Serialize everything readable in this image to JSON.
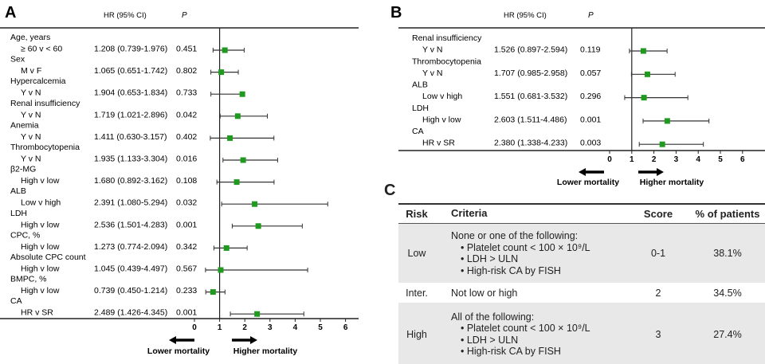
{
  "chart_data": [
    {
      "type": "forest",
      "panel": "A",
      "col_hr": "HR (95% CI)",
      "col_p": "P",
      "xlim": [
        0,
        6
      ],
      "ticks": [
        "0",
        "1",
        "2",
        "3",
        "4",
        "5",
        "6"
      ],
      "reference": 1,
      "lower_label": "Lower mortality",
      "higher_label": "Higher mortality",
      "rows": [
        {
          "group": "Age, years",
          "compare": "≥ 60 v < 60",
          "hr_text": "1.208 (0.739-1.976)",
          "p": "0.451",
          "hr": 1.208,
          "lo": 0.739,
          "hi": 1.976
        },
        {
          "group": "Sex",
          "compare": "M v F",
          "hr_text": "1.065 (0.651-1.742)",
          "p": "0.802",
          "hr": 1.065,
          "lo": 0.651,
          "hi": 1.742
        },
        {
          "group": "Hypercalcemia",
          "compare": "Y v N",
          "hr_text": "1.904 (0.653-1.834)",
          "p": "0.733",
          "hr": 1.904,
          "lo": 0.653,
          "hi": 1.834
        },
        {
          "group": "Renal insufficiency",
          "compare": "Y v N",
          "hr_text": "1.719 (1.021-2.896)",
          "p": "0.042",
          "hr": 1.719,
          "lo": 1.021,
          "hi": 2.896
        },
        {
          "group": "Anemia",
          "compare": "Y v N",
          "hr_text": "1.411 (0.630-3.157)",
          "p": "0.402",
          "hr": 1.411,
          "lo": 0.63,
          "hi": 3.157
        },
        {
          "group": "Thrombocytopenia",
          "compare": "Y v N",
          "hr_text": "1.935 (1.133-3.304)",
          "p": "0.016",
          "hr": 1.935,
          "lo": 1.133,
          "hi": 3.304
        },
        {
          "group": "β2-MG",
          "compare": "High v low",
          "hr_text": "1.680 (0.892-3.162)",
          "p": "0.108",
          "hr": 1.68,
          "lo": 0.892,
          "hi": 3.162
        },
        {
          "group": "ALB",
          "compare": "Low v high",
          "hr_text": "2.391 (1.080-5.294)",
          "p": "0.032",
          "hr": 2.391,
          "lo": 1.08,
          "hi": 5.294
        },
        {
          "group": "LDH",
          "compare": "High v low",
          "hr_text": "2.536 (1.501-4.283)",
          "p": "0.001",
          "hr": 2.536,
          "lo": 1.501,
          "hi": 4.283
        },
        {
          "group": "CPC, %",
          "compare": "High v low",
          "hr_text": "1.273 (0.774-2.094)",
          "p": "0.342",
          "hr": 1.273,
          "lo": 0.774,
          "hi": 2.094
        },
        {
          "group": "Absolute CPC count",
          "compare": "High v low",
          "hr_text": "1.045 (0.439-4.497)",
          "p": "0.567",
          "hr": 1.045,
          "lo": 0.439,
          "hi": 4.497
        },
        {
          "group": "BMPC, %",
          "compare": "High v low",
          "hr_text": "0.739 (0.450-1.214)",
          "p": "0.233",
          "hr": 0.739,
          "lo": 0.45,
          "hi": 1.214
        },
        {
          "group": "CA",
          "compare": "HR v SR",
          "hr_text": "2.489 (1.426-4.345)",
          "p": "0.001",
          "hr": 2.489,
          "lo": 1.426,
          "hi": 4.345
        }
      ]
    },
    {
      "type": "forest",
      "panel": "B",
      "col_hr": "HR (95% CI)",
      "col_p": "P",
      "xlim": [
        0,
        6
      ],
      "ticks": [
        "0",
        "1",
        "2",
        "3",
        "4",
        "5",
        "6"
      ],
      "reference": 1,
      "lower_label": "Lower mortality",
      "higher_label": "Higher mortality",
      "rows": [
        {
          "group": "Renal insufficiency",
          "compare": "Y v N",
          "hr_text": "1.526 (0.897-2.594)",
          "p": "0.119",
          "hr": 1.526,
          "lo": 0.897,
          "hi": 2.594
        },
        {
          "group": "Thrombocytopenia",
          "compare": "Y v N",
          "hr_text": "1.707 (0.985-2.958)",
          "p": "0.057",
          "hr": 1.707,
          "lo": 0.985,
          "hi": 2.958
        },
        {
          "group": "ALB",
          "compare": "Low v high",
          "hr_text": "1.551 (0.681-3.532)",
          "p": "0.296",
          "hr": 1.551,
          "lo": 0.681,
          "hi": 3.532
        },
        {
          "group": "LDH",
          "compare": "High v low",
          "hr_text": "2.603 (1.511-4.486)",
          "p": "0.001",
          "hr": 2.603,
          "lo": 1.511,
          "hi": 4.486
        },
        {
          "group": "CA",
          "compare": "HR v SR",
          "hr_text": "2.380 (1.338-4.233)",
          "p": "0.003",
          "hr": 2.38,
          "lo": 1.338,
          "hi": 4.233
        }
      ]
    }
  ],
  "colors": {
    "marker": "#1f9a1f",
    "shade": "#e8e8e8"
  },
  "table": {
    "panel": "C",
    "headers": [
      "Risk",
      "Criteria",
      "Score",
      "% of patients"
    ],
    "rows": [
      {
        "risk": "Low",
        "criteria": "None or one of the following:",
        "bullets": [
          "• Platelet count < 100 × 10⁹/L",
          "• LDH > ULN",
          "• High-risk CA by FISH"
        ],
        "score": "0-1",
        "pct": "38.1%"
      },
      {
        "risk": "Inter.",
        "criteria": "Not low or high",
        "bullets": [],
        "score": "2",
        "pct": "34.5%"
      },
      {
        "risk": "High",
        "criteria": "All of the following:",
        "bullets": [
          "• Platelet count < 100 × 10⁹/L",
          "• LDH > ULN",
          "• High-risk CA by FISH"
        ],
        "score": "3",
        "pct": "27.4%"
      }
    ]
  }
}
